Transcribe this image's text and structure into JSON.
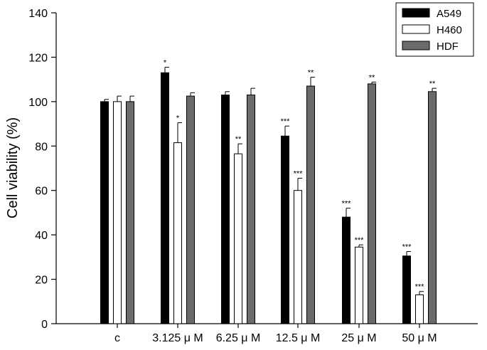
{
  "chart_data": {
    "type": "bar",
    "title": "",
    "xlabel": "",
    "ylabel": "Cell viability (%)",
    "ylim": [
      0,
      140
    ],
    "yticks": [
      0,
      20,
      40,
      60,
      80,
      100,
      120,
      140
    ],
    "categories": [
      "c",
      "3.125 μ M",
      "6.25 μ M",
      "12.5 μ M",
      "25 μ M",
      "50 μ M"
    ],
    "legend_position": "top-right",
    "grid": false,
    "series": [
      {
        "name": "A549",
        "color": "#000000",
        "values": [
          100,
          113,
          103,
          84.5,
          48,
          30.5
        ],
        "errors": [
          1,
          2.5,
          1.5,
          4.5,
          4,
          2
        ],
        "significance": [
          "",
          "*",
          "",
          "***",
          "***",
          "***"
        ]
      },
      {
        "name": "H460",
        "color": "#ffffff",
        "values": [
          100,
          81.5,
          76.5,
          60,
          34.5,
          13
        ],
        "errors": [
          2.5,
          9,
          4.5,
          5.5,
          1,
          1.5
        ],
        "significance": [
          "",
          "*",
          "**",
          "***",
          "***",
          "***"
        ]
      },
      {
        "name": "HDF",
        "color": "#6b6b6b",
        "values": [
          100,
          102.5,
          103,
          107,
          108,
          104.5
        ],
        "errors": [
          2.5,
          1.5,
          3,
          4,
          0.8,
          1.5
        ],
        "significance": [
          "",
          "",
          "",
          "**",
          "**",
          "**"
        ]
      }
    ]
  }
}
